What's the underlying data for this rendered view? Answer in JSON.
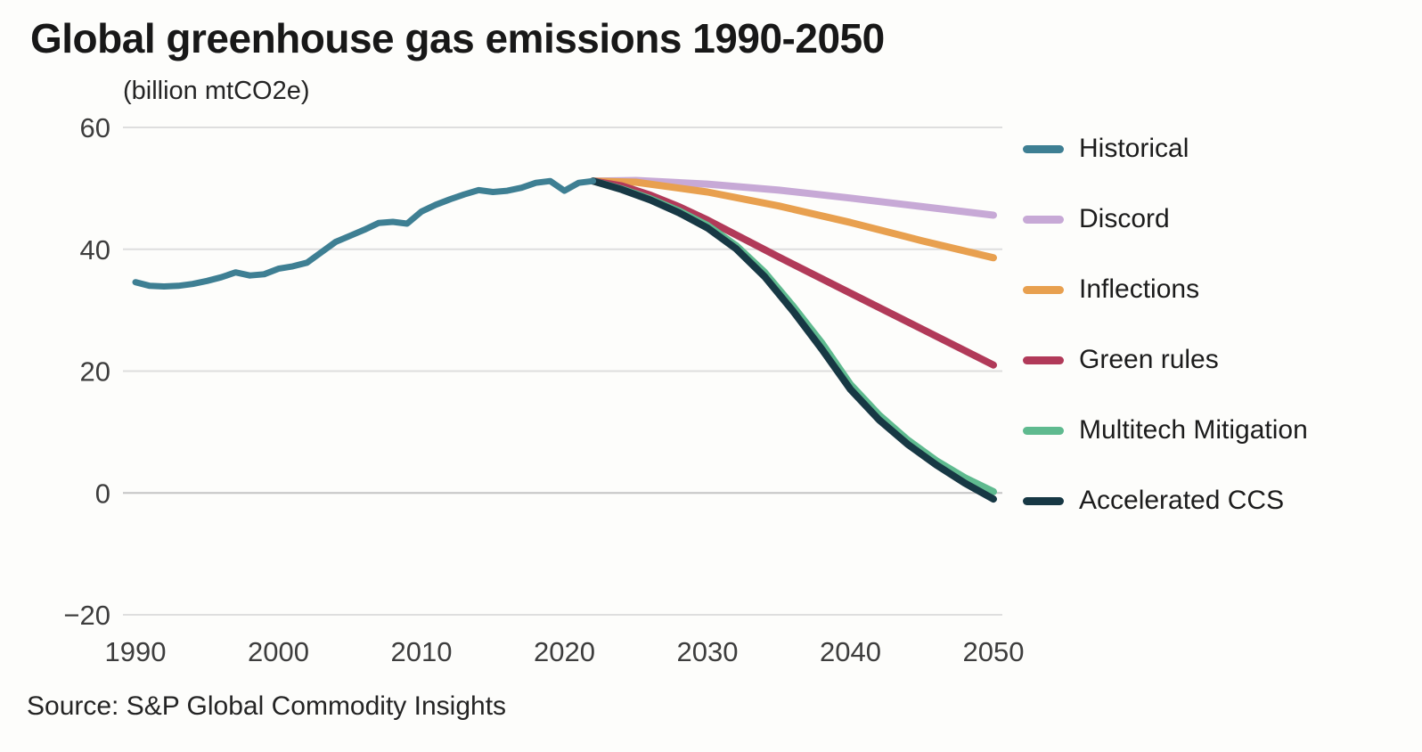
{
  "header": {
    "title": "Global greenhouse gas emissions 1990-2050",
    "subtitle": "(billion mtCO2e)"
  },
  "footer": {
    "source": "Source: S&P Global Commodity Insights"
  },
  "colors": {
    "historical": "#3e7f93",
    "discord": "#c7a9d6",
    "inflections": "#e8a04f",
    "green_rules": "#b13a59",
    "multitech_mitigation": "#5fba8f",
    "accelerated_ccs": "#173844",
    "gridline": "#dedede",
    "gridline_zero": "#c4c4c4",
    "tick_label": "#3d3d3d"
  },
  "chart_data": {
    "type": "line",
    "title": "Global greenhouse gas emissions 1990-2050",
    "ylabel": "(billion mtCO2e)",
    "xlabel": "",
    "xlim": [
      1990,
      2050
    ],
    "ylim": [
      -20,
      60
    ],
    "xticks": [
      1990,
      2000,
      2010,
      2020,
      2030,
      2040,
      2050
    ],
    "yticks": [
      -20,
      0,
      20,
      40,
      60
    ],
    "grid": "horizontal",
    "legend_position": "right",
    "series": [
      {
        "name": "Historical",
        "color": "#3e7f93",
        "width": 7,
        "x": [
          1990,
          1991,
          1992,
          1993,
          1994,
          1995,
          1996,
          1997,
          1998,
          1999,
          2000,
          2001,
          2002,
          2003,
          2004,
          2005,
          2006,
          2007,
          2008,
          2009,
          2010,
          2011,
          2012,
          2013,
          2014,
          2015,
          2016,
          2017,
          2018,
          2019,
          2020,
          2021,
          2022
        ],
        "y": [
          34.6,
          34.0,
          33.9,
          34.0,
          34.3,
          34.8,
          35.4,
          36.2,
          35.7,
          35.9,
          36.8,
          37.2,
          37.8,
          39.5,
          41.2,
          42.2,
          43.2,
          44.3,
          44.5,
          44.2,
          46.2,
          47.3,
          48.2,
          49.0,
          49.7,
          49.4,
          49.6,
          50.1,
          50.9,
          51.2,
          49.6,
          50.9,
          51.2
        ]
      },
      {
        "name": "Discord",
        "color": "#c7a9d6",
        "width": 8,
        "x": [
          2022,
          2025,
          2030,
          2035,
          2040,
          2045,
          2050
        ],
        "y": [
          51.2,
          51.3,
          50.7,
          49.7,
          48.4,
          47.0,
          45.6
        ]
      },
      {
        "name": "Inflections",
        "color": "#e8a04f",
        "width": 8,
        "x": [
          2022,
          2025,
          2030,
          2035,
          2040,
          2045,
          2050
        ],
        "y": [
          51.2,
          51.0,
          49.4,
          47.1,
          44.4,
          41.4,
          38.6
        ]
      },
      {
        "name": "Green rules",
        "color": "#b13a59",
        "width": 8,
        "x": [
          2022,
          2024,
          2026,
          2028,
          2030,
          2035,
          2040,
          2045,
          2050
        ],
        "y": [
          51.2,
          50.4,
          48.9,
          47.0,
          44.8,
          38.7,
          32.8,
          26.9,
          21.0
        ]
      },
      {
        "name": "Multitech Mitigation",
        "color": "#5fba8f",
        "width": 8,
        "x": [
          2022,
          2024,
          2026,
          2028,
          2030,
          2032,
          2034,
          2036,
          2038,
          2040,
          2042,
          2044,
          2046,
          2048,
          2050
        ],
        "y": [
          51.2,
          49.9,
          48.3,
          46.3,
          43.9,
          40.6,
          36.2,
          30.6,
          24.6,
          17.8,
          12.8,
          8.7,
          5.3,
          2.5,
          0.2
        ]
      },
      {
        "name": "Accelerated CCS",
        "color": "#173844",
        "width": 8,
        "x": [
          2022,
          2024,
          2026,
          2028,
          2030,
          2032,
          2034,
          2036,
          2038,
          2040,
          2042,
          2044,
          2046,
          2048,
          2050
        ],
        "y": [
          51.2,
          49.8,
          48.1,
          46.0,
          43.5,
          40.1,
          35.5,
          29.8,
          23.6,
          17.0,
          12.0,
          8.0,
          4.6,
          1.6,
          -1.0
        ]
      }
    ]
  }
}
